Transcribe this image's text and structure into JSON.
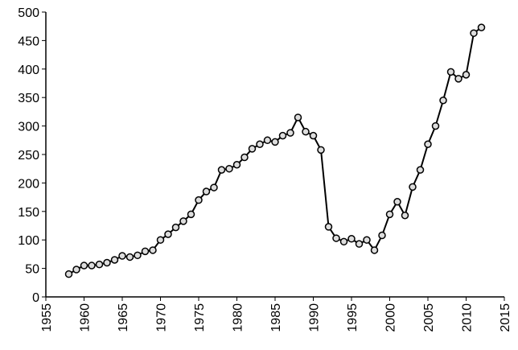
{
  "chart_data": {
    "type": "line",
    "x": [
      1958,
      1959,
      1960,
      1961,
      1962,
      1963,
      1964,
      1965,
      1966,
      1967,
      1968,
      1969,
      1970,
      1971,
      1972,
      1973,
      1974,
      1975,
      1976,
      1977,
      1978,
      1979,
      1980,
      1981,
      1982,
      1983,
      1984,
      1985,
      1986,
      1987,
      1988,
      1989,
      1990,
      1991,
      1992,
      1993,
      1994,
      1995,
      1996,
      1997,
      1998,
      1999,
      2000,
      2001,
      2002,
      2003,
      2004,
      2005,
      2006,
      2007,
      2008,
      2009,
      2010,
      2011,
      2012
    ],
    "values": [
      40,
      48,
      55,
      55,
      57,
      60,
      65,
      72,
      70,
      73,
      80,
      82,
      100,
      110,
      122,
      133,
      145,
      170,
      185,
      192,
      223,
      225,
      232,
      245,
      260,
      268,
      275,
      272,
      283,
      288,
      315,
      290,
      283,
      258,
      123,
      103,
      97,
      102,
      93,
      100,
      82,
      108,
      145,
      167,
      143,
      193,
      223,
      268,
      300,
      345,
      395,
      383,
      390,
      463,
      473
    ],
    "color": "#000000",
    "xlim": [
      1955,
      2015
    ],
    "xticks": [
      1955,
      1960,
      1965,
      1970,
      1975,
      1980,
      1985,
      1990,
      1995,
      2000,
      2005,
      2010,
      2015
    ],
    "ylim": [
      0,
      500
    ],
    "yticks": [
      0,
      50,
      100,
      150,
      200,
      250,
      300,
      350,
      400,
      450,
      500
    ],
    "grid": false
  }
}
